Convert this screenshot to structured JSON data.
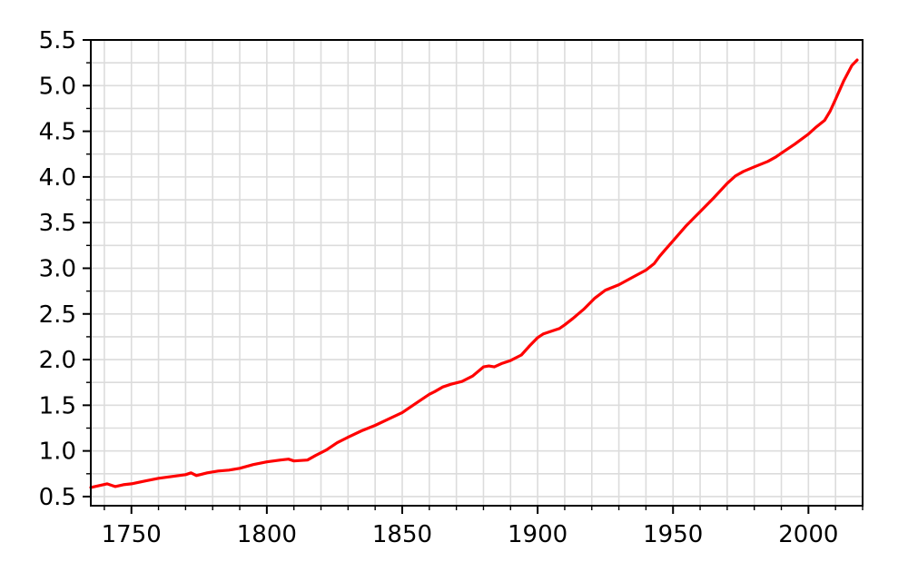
{
  "chart_data": {
    "type": "line",
    "title": "",
    "xlabel": "",
    "ylabel": "",
    "xlim": [
      1735,
      2020
    ],
    "ylim": [
      0.4,
      5.5
    ],
    "x_ticks": [
      1750,
      1800,
      1850,
      1900,
      1950,
      2000
    ],
    "x_tick_labels": [
      "1750",
      "1800",
      "1850",
      "1900",
      "1950",
      "2000"
    ],
    "y_ticks": [
      0.5,
      1.0,
      1.5,
      2.0,
      2.5,
      3.0,
      3.5,
      4.0,
      4.5,
      5.0,
      5.5
    ],
    "y_tick_labels": [
      "0.5",
      "1.0",
      "1.5",
      "2.0",
      "2.5",
      "3.0",
      "3.5",
      "4.0",
      "4.5",
      "5.0",
      "5.5"
    ],
    "grid": true,
    "legend": "none",
    "series": [
      {
        "color": "#ff0000",
        "x": [
          1735,
          1738,
          1741,
          1744,
          1747,
          1750,
          1755,
          1760,
          1765,
          1770,
          1772,
          1774,
          1778,
          1782,
          1786,
          1790,
          1795,
          1800,
          1805,
          1808,
          1810,
          1815,
          1818,
          1822,
          1826,
          1830,
          1835,
          1840,
          1845,
          1850,
          1855,
          1860,
          1862,
          1865,
          1868,
          1872,
          1876,
          1880,
          1882,
          1884,
          1887,
          1890,
          1894,
          1897,
          1900,
          1902,
          1905,
          1908,
          1910,
          1913,
          1917,
          1921,
          1925,
          1930,
          1935,
          1940,
          1943,
          1945,
          1947,
          1950,
          1955,
          1960,
          1965,
          1970,
          1973,
          1976,
          1980,
          1985,
          1988,
          1990,
          1995,
          2000,
          2003,
          2006,
          2008,
          2010,
          2013,
          2016,
          2018
        ],
        "y": [
          0.6,
          0.62,
          0.64,
          0.61,
          0.63,
          0.64,
          0.67,
          0.7,
          0.72,
          0.74,
          0.76,
          0.73,
          0.76,
          0.78,
          0.79,
          0.81,
          0.85,
          0.88,
          0.9,
          0.91,
          0.89,
          0.9,
          0.95,
          1.01,
          1.09,
          1.15,
          1.22,
          1.28,
          1.35,
          1.42,
          1.52,
          1.62,
          1.65,
          1.7,
          1.73,
          1.76,
          1.82,
          1.92,
          1.93,
          1.92,
          1.96,
          1.99,
          2.05,
          2.15,
          2.24,
          2.28,
          2.31,
          2.34,
          2.38,
          2.45,
          2.55,
          2.67,
          2.76,
          2.82,
          2.9,
          2.98,
          3.05,
          3.13,
          3.2,
          3.3,
          3.47,
          3.62,
          3.77,
          3.93,
          4.01,
          4.06,
          4.11,
          4.17,
          4.22,
          4.26,
          4.36,
          4.47,
          4.55,
          4.62,
          4.72,
          4.85,
          5.05,
          5.22,
          5.28
        ]
      }
    ]
  }
}
